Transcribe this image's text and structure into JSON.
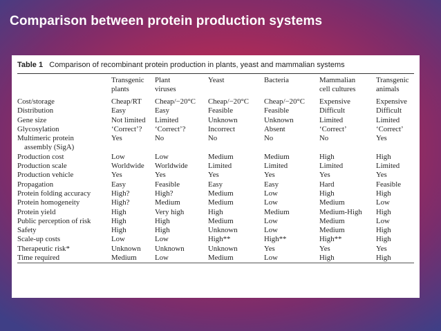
{
  "slide": {
    "title": "Comparison between protein production systems"
  },
  "table": {
    "caption_label": "Table 1",
    "caption_text": "Comparison of recombinant protein production in plants, yeast and mammalian systems",
    "headers": [
      {
        "line1": "",
        "line2": ""
      },
      {
        "line1": "Transgenic",
        "line2": "plants"
      },
      {
        "line1": "Plant",
        "line2": "viruses"
      },
      {
        "line1": "Yeast",
        "line2": ""
      },
      {
        "line1": "Bacteria",
        "line2": ""
      },
      {
        "line1": "Mammalian",
        "line2": "cell cultures"
      },
      {
        "line1": "Transgenic",
        "line2": "animals"
      }
    ],
    "rows": [
      [
        "Cost/storage",
        "Cheap/RT",
        "Cheap/−20°C",
        "Cheap/−20°C",
        "Cheap/−20°C",
        "Expensive",
        "Expensive"
      ],
      [
        "Distribution",
        "Easy",
        "Easy",
        "Feasible",
        "Feasible",
        "Difficult",
        "Difficult"
      ],
      [
        "Gene size",
        "Not limited",
        "Limited",
        "Unknown",
        "Unknown",
        "Limited",
        "Limited"
      ],
      [
        "Glycosylation",
        "‘Correct’?",
        "‘Correct’?",
        "Incorrect",
        "Absent",
        "‘Correct’",
        "‘Correct’"
      ],
      [
        "Multimeric protein",
        "Yes",
        "No",
        "No",
        "No",
        "No",
        "Yes"
      ],
      [
        "assembly (SigA)",
        "",
        "",
        "",
        "",
        "",
        ""
      ],
      [
        "Production cost",
        "Low",
        "Low",
        "Medium",
        "Medium",
        "High",
        "High"
      ],
      [
        "Production scale",
        "Worldwide",
        "Worldwide",
        "Limited",
        "Limited",
        "Limited",
        "Limited"
      ],
      [
        "Production vehicle",
        "Yes",
        "Yes",
        "Yes",
        "Yes",
        "Yes",
        "Yes"
      ],
      [
        "Propagation",
        "Easy",
        "Feasible",
        "Easy",
        "Easy",
        "Hard",
        "Feasible"
      ],
      [
        "Protein folding accuracy",
        "High?",
        "High?",
        "Medium",
        "Low",
        "High",
        "High"
      ],
      [
        "Protein homogeneity",
        "High?",
        "Medium",
        "Medium",
        "Low",
        "Medium",
        "Low"
      ],
      [
        "Protein yield",
        "High",
        "Very high",
        "High",
        "Medium",
        "Medium-High",
        "High"
      ],
      [
        "Public perception of risk",
        "High",
        "High",
        "Medium",
        "Low",
        "Medium",
        "Low"
      ],
      [
        "Safety",
        "High",
        "High",
        "Unknown",
        "Low",
        "Medium",
        "High"
      ],
      [
        "Scale-up costs",
        "Low",
        "Low",
        "High**",
        "High**",
        "High**",
        "High"
      ],
      [
        "Therapeutic risk*",
        "Unknown",
        "Unknown",
        "Unknown",
        "Yes",
        "Yes",
        "Yes"
      ],
      [
        "Time required",
        "Medium",
        "Low",
        "Medium",
        "Low",
        "High",
        "High"
      ]
    ]
  }
}
